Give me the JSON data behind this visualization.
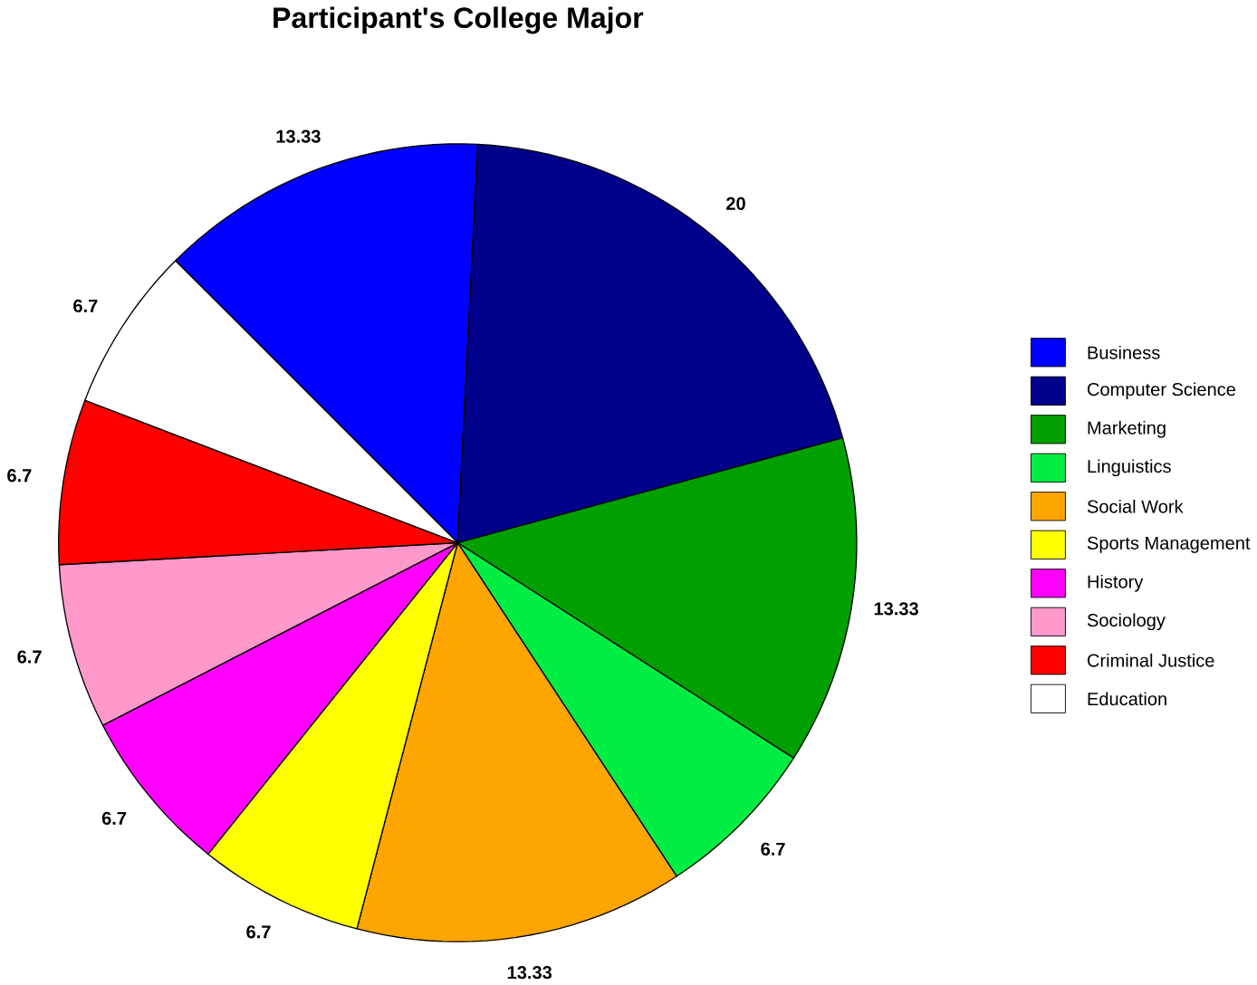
{
  "chart_data": {
    "type": "pie",
    "title": "Participant's College Major",
    "categories": [
      "Business",
      "Computer Science",
      "Marketing",
      "Linguistics",
      "Social Work",
      "Sports Management",
      "History",
      "Sociology",
      "Criminal Justice",
      "Education"
    ],
    "values": [
      13.33,
      20,
      13.33,
      6.7,
      13.33,
      6.7,
      6.7,
      6.7,
      6.7,
      6.7
    ],
    "colors": [
      "#0000ff",
      "#00008b",
      "#00a000",
      "#00ee44",
      "#ffa500",
      "#ffff00",
      "#ff00ff",
      "#ff99cc",
      "#ff0000",
      "#ffffff"
    ],
    "data_labels": true,
    "legend": "right"
  }
}
